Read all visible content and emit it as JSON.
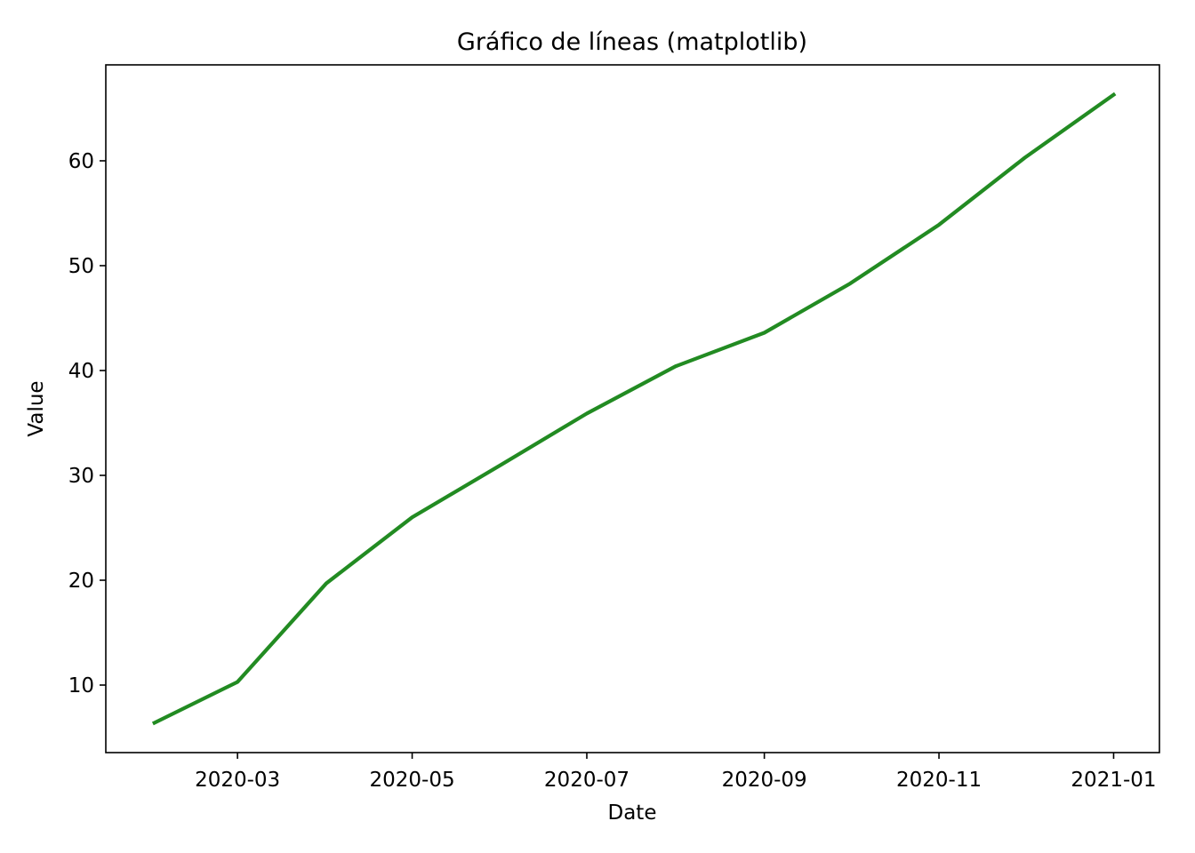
{
  "chart_data": {
    "type": "line",
    "title": "Gráfico de líneas (matplotlib)",
    "x_label": "Date",
    "y_label": "Value",
    "x": [
      "2020-02",
      "2020-03",
      "2020-04",
      "2020-05",
      "2020-06",
      "2020-07",
      "2020-08",
      "2020-09",
      "2020-10",
      "2020-11",
      "2020-12",
      "2021-01"
    ],
    "series": [
      {
        "name": "Value",
        "color": "#228b22",
        "values": [
          6.4,
          10.3,
          19.7,
          26.0,
          31.0,
          35.9,
          40.4,
          43.6,
          48.3,
          53.9,
          60.3,
          66.3
        ]
      }
    ],
    "xlim": [
      "2020-01-15",
      "2021-01-17"
    ],
    "xticks": [
      "2020-03",
      "2020-05",
      "2020-07",
      "2020-09",
      "2020-11",
      "2021-01"
    ],
    "ylim": [
      3.56,
      69.15
    ],
    "yticks": [
      10,
      20,
      30,
      40,
      50,
      60
    ],
    "grid": false
  }
}
